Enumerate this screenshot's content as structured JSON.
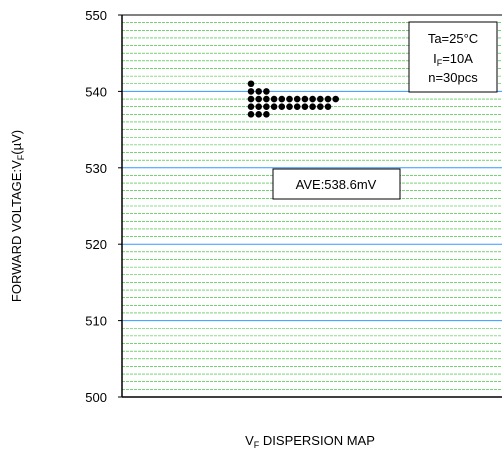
{
  "chart_data": {
    "type": "scatter",
    "title": "",
    "xlabel": {
      "main": "V",
      "sub": "F",
      "rest": " DISPERSION MAP"
    },
    "ylabel": {
      "prefix": "FORWARD VOLTAGE:V",
      "sub": "F",
      "suffix": "(µV)"
    },
    "ylim": [
      500,
      550
    ],
    "yticks": [
      500,
      510,
      520,
      530,
      540,
      550
    ],
    "ytick_labels": [
      "500",
      "510",
      "520",
      "530",
      "540",
      "550"
    ],
    "major_grid_values": [
      510,
      520,
      530,
      540
    ],
    "minor_grid_step": 1,
    "grid": true,
    "major_grid_color": "#3399ff",
    "minor_grid_color": "#22bb22",
    "marker_color": "#000000",
    "conditions": {
      "line1": "Ta=25°C",
      "line2": {
        "main": "I",
        "sub": "F",
        "rest": "=10A"
      },
      "line3": "n=30pcs"
    },
    "average_label": "AVE:538.6mV",
    "columns": [
      {
        "values": [
          537,
          538,
          539,
          540,
          541
        ]
      },
      {
        "values": [
          537,
          538,
          539,
          540
        ]
      },
      {
        "values": [
          537,
          538,
          539,
          540
        ]
      },
      {
        "values": [
          538,
          539
        ]
      },
      {
        "values": [
          538,
          539
        ]
      },
      {
        "values": [
          538,
          539
        ]
      },
      {
        "values": [
          538,
          539
        ]
      },
      {
        "values": [
          538,
          539
        ]
      },
      {
        "values": [
          538,
          539
        ]
      },
      {
        "values": [
          538,
          539
        ]
      },
      {
        "values": [
          538,
          539
        ]
      },
      {
        "values": [
          539
        ]
      }
    ]
  }
}
